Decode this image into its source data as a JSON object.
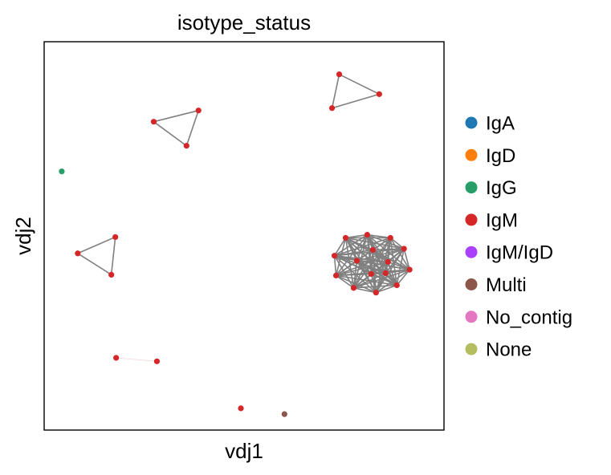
{
  "chart_data": {
    "type": "scatter",
    "title": "isotype_status",
    "xlabel": "vdj1",
    "ylabel": "vdj2",
    "xlim": [
      0,
      100
    ],
    "ylim": [
      0,
      100
    ],
    "grid": false,
    "legend_placement": "right",
    "edge_color": "#808080",
    "legend": [
      {
        "label": "IgA",
        "color": "#1f77b4"
      },
      {
        "label": "IgD",
        "color": "#ff7f0e"
      },
      {
        "label": "IgG",
        "color": "#279e68"
      },
      {
        "label": "IgM",
        "color": "#d62728"
      },
      {
        "label": "IgM/IgD",
        "color": "#aa40fc"
      },
      {
        "label": "Multi",
        "color": "#8c564b"
      },
      {
        "label": "No_contig",
        "color": "#e377c2"
      },
      {
        "label": "None",
        "color": "#b5bd61"
      }
    ],
    "nodes": [
      {
        "id": 0,
        "x": 73.8,
        "y": 91.6,
        "category": "IgM"
      },
      {
        "id": 1,
        "x": 83.8,
        "y": 86.5,
        "category": "IgM"
      },
      {
        "id": 2,
        "x": 72.0,
        "y": 82.9,
        "category": "IgM"
      },
      {
        "id": 3,
        "x": 27.4,
        "y": 79.4,
        "category": "IgM"
      },
      {
        "id": 4,
        "x": 38.6,
        "y": 82.3,
        "category": "IgM"
      },
      {
        "id": 5,
        "x": 35.6,
        "y": 73.2,
        "category": "IgM"
      },
      {
        "id": 6,
        "x": 4.4,
        "y": 66.6,
        "category": "IgG"
      },
      {
        "id": 7,
        "x": 17.8,
        "y": 49.7,
        "category": "IgM"
      },
      {
        "id": 8,
        "x": 8.4,
        "y": 45.5,
        "category": "IgM"
      },
      {
        "id": 9,
        "x": 16.8,
        "y": 40.0,
        "category": "IgM"
      },
      {
        "id": 10,
        "x": 18.0,
        "y": 18.6,
        "category": "IgM"
      },
      {
        "id": 11,
        "x": 28.2,
        "y": 17.7,
        "category": "IgM"
      },
      {
        "id": 12,
        "x": 49.2,
        "y": 5.6,
        "category": "IgM"
      },
      {
        "id": 13,
        "x": 60.1,
        "y": 4.1,
        "category": "Multi"
      },
      {
        "id": 14,
        "x": 72.6,
        "y": 49.5,
        "category": "IgM"
      },
      {
        "id": 15,
        "x": 72.6,
        "y": 49.5,
        "category": "IgM"
      },
      {
        "id": 16,
        "x": 72.6,
        "y": 49.5,
        "category": "IgM"
      },
      {
        "id": 17,
        "x": 72.6,
        "y": 49.5,
        "category": "IgM"
      },
      {
        "id": 18,
        "x": 72.6,
        "y": 49.5,
        "category": "IgM"
      },
      {
        "id": 19,
        "x": 72.6,
        "y": 49.5,
        "category": "IgM"
      },
      {
        "id": 20,
        "x": 72.6,
        "y": 49.5,
        "category": "IgM"
      },
      {
        "id": 21,
        "x": 72.6,
        "y": 49.5,
        "category": "IgM"
      },
      {
        "id": 22,
        "x": 72.6,
        "y": 49.5,
        "category": "IgM"
      },
      {
        "id": 23,
        "x": 72.6,
        "y": 49.5,
        "category": "IgM"
      },
      {
        "id": 24,
        "x": 72.6,
        "y": 49.5,
        "category": "IgM"
      },
      {
        "id": 25,
        "x": 72.6,
        "y": 49.5,
        "category": "IgM"
      },
      {
        "id": 26,
        "x": 72.6,
        "y": 49.5,
        "category": "IgM"
      },
      {
        "id": 27,
        "x": 72.6,
        "y": 49.5,
        "category": "IgM"
      },
      {
        "id": 28,
        "x": 72.6,
        "y": 49.5,
        "category": "IgM"
      }
    ],
    "cluster": [
      {
        "x": 72.6,
        "y": 44.9
      },
      {
        "x": 75.4,
        "y": 49.5
      },
      {
        "x": 80.8,
        "y": 50.3
      },
      {
        "x": 86.6,
        "y": 49.5
      },
      {
        "x": 90.0,
        "y": 46.7
      },
      {
        "x": 91.4,
        "y": 41.3
      },
      {
        "x": 88.2,
        "y": 37.3
      },
      {
        "x": 83.0,
        "y": 35.4
      },
      {
        "x": 77.4,
        "y": 36.6
      },
      {
        "x": 73.0,
        "y": 39.8
      },
      {
        "x": 78.2,
        "y": 43.6
      },
      {
        "x": 82.2,
        "y": 46.4
      },
      {
        "x": 86.0,
        "y": 43.3
      },
      {
        "x": 81.8,
        "y": 40.2
      },
      {
        "x": 85.4,
        "y": 40.4
      }
    ],
    "edges": [
      [
        0,
        1
      ],
      [
        1,
        2
      ],
      [
        2,
        0
      ],
      [
        3,
        4
      ],
      [
        4,
        5
      ],
      [
        5,
        3
      ],
      [
        7,
        8
      ],
      [
        8,
        9
      ],
      [
        9,
        7
      ],
      [
        10,
        11
      ]
    ],
    "faint_edges": [
      [
        10,
        11
      ]
    ]
  }
}
